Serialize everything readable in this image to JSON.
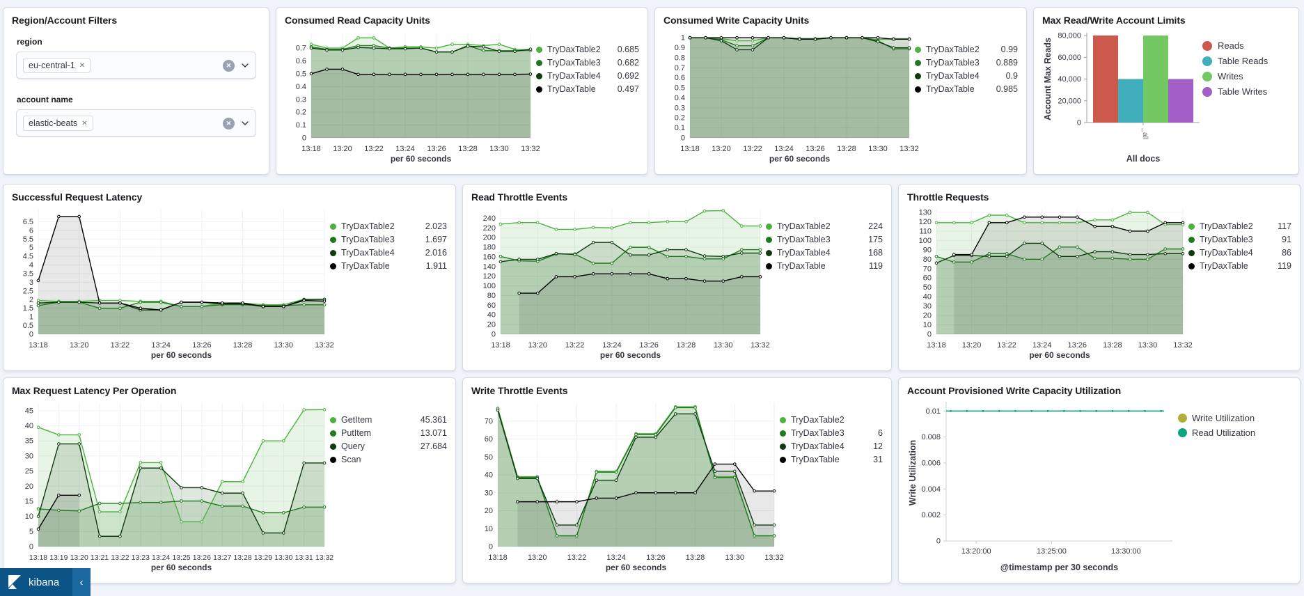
{
  "filters": {
    "title": "Region/Account Filters",
    "groups": [
      {
        "label": "region",
        "tag": "eu-central-1",
        "remove_icon": "✕"
      },
      {
        "label": "account name",
        "tag": "elastic-beats",
        "remove_icon": "✕"
      }
    ]
  },
  "kibana_bar": {
    "label": "kibana",
    "collapse_icon": "‹"
  },
  "palette": {
    "green_light": "#4CB13E",
    "green_mid": "#1F7A1F",
    "green_dark": "#0E3B0E",
    "black": "#000000",
    "bar_red": "#CB5A4C",
    "bar_teal": "#40AEBB",
    "bar_green": "#74C863",
    "bar_purple": "#A45FC6",
    "util_olive": "#B2AE3B",
    "util_teal": "#0EA47E"
  },
  "chart_data": [
    {
      "id": "consumed-read",
      "type": "line",
      "title": "Consumed Read Capacity Units",
      "xlabel": "per 60 seconds",
      "ylim": [
        0,
        0.82
      ],
      "yticks": [
        0,
        0.1,
        0.2,
        0.3,
        0.4,
        0.5,
        0.6,
        0.7
      ],
      "x_tick_every": 2,
      "categories": [
        "13:18",
        "13:19",
        "13:20",
        "13:21",
        "13:22",
        "13:23",
        "13:24",
        "13:25",
        "13:26",
        "13:27",
        "13:28",
        "13:29",
        "13:30",
        "13:31",
        "13:32"
      ],
      "series": [
        {
          "name": "TryDaxTable2",
          "legend_value": "0.685",
          "color": "#4CB13E",
          "values": [
            0.73,
            0.7,
            0.7,
            0.78,
            0.78,
            0.7,
            0.71,
            0.71,
            0.7,
            0.73,
            0.73,
            0.72,
            0.73,
            0.69,
            0.685
          ]
        },
        {
          "name": "TryDaxTable3",
          "legend_value": "0.682",
          "color": "#1F7A1F",
          "values": [
            0.71,
            0.69,
            0.69,
            0.72,
            0.72,
            0.7,
            0.7,
            0.7,
            0.67,
            0.67,
            0.72,
            0.68,
            0.68,
            0.68,
            0.682
          ]
        },
        {
          "name": "TryDaxTable4",
          "legend_value": "0.692",
          "color": "#0E3B0E",
          "values": [
            0.7,
            0.685,
            0.685,
            0.705,
            0.7,
            0.695,
            0.695,
            0.7,
            0.67,
            0.67,
            0.715,
            0.71,
            0.675,
            0.675,
            0.692
          ]
        },
        {
          "name": "TryDaxTable",
          "legend_value": "0.497",
          "color": "#000000",
          "values": [
            0.5,
            0.535,
            0.535,
            0.495,
            0.495,
            0.495,
            0.495,
            0.495,
            0.495,
            0.495,
            0.495,
            0.495,
            0.495,
            0.495,
            0.497
          ]
        }
      ]
    },
    {
      "id": "consumed-write",
      "type": "line",
      "title": "Consumed Write Capacity Units",
      "xlabel": "per 60 seconds",
      "ylim": [
        0,
        1.05
      ],
      "yticks": [
        0,
        0.1,
        0.2,
        0.3,
        0.4,
        0.5,
        0.6,
        0.7,
        0.8,
        0.9,
        1
      ],
      "x_tick_every": 2,
      "categories": [
        "13:18",
        "13:19",
        "13:20",
        "13:21",
        "13:22",
        "13:23",
        "13:24",
        "13:25",
        "13:26",
        "13:27",
        "13:28",
        "13:29",
        "13:30",
        "13:31",
        "13:32"
      ],
      "series": [
        {
          "name": "TryDaxTable2",
          "legend_value": "0.99",
          "color": "#4CB13E",
          "values": [
            1,
            1,
            0.99,
            0.97,
            0.97,
            1,
            1,
            0.99,
            0.99,
            1,
            1,
            1,
            0.98,
            0.99,
            0.99
          ]
        },
        {
          "name": "TryDaxTable3",
          "legend_value": "0.889",
          "color": "#1F7A1F",
          "values": [
            1,
            1,
            0.98,
            0.92,
            0.92,
            1,
            1,
            0.99,
            0.99,
            1,
            1,
            1,
            0.97,
            0.889,
            0.889
          ]
        },
        {
          "name": "TryDaxTable4",
          "legend_value": "0.9",
          "color": "#0E3B0E",
          "values": [
            1,
            1,
            0.97,
            0.88,
            0.88,
            1,
            1,
            0.985,
            0.985,
            1,
            1,
            1,
            0.96,
            0.9,
            0.9
          ]
        },
        {
          "name": "TryDaxTable",
          "legend_value": "0.985",
          "color": "#000000",
          "values": [
            1,
            1,
            1,
            1,
            1,
            1,
            1,
            0.985,
            0.985,
            1,
            1,
            1,
            1,
            0.985,
            0.985
          ]
        }
      ]
    },
    {
      "id": "account-limits",
      "type": "bar",
      "title": "Max Read/Write Account Limits",
      "xlabel": "All docs",
      "ylabel": "Account Max Reads",
      "x_tick_label": "_all",
      "ylim": [
        0,
        80000
      ],
      "yticks": [
        0,
        20000,
        40000,
        60000,
        80000
      ],
      "categories": [
        "_all"
      ],
      "series": [
        {
          "name": "Reads",
          "legend_value": "",
          "color": "#CB5A4C",
          "values": [
            80000
          ]
        },
        {
          "name": "Table Reads",
          "legend_value": "",
          "color": "#40AEBB",
          "values": [
            40000
          ]
        },
        {
          "name": "Writes",
          "legend_value": "",
          "color": "#74C863",
          "values": [
            80000
          ]
        },
        {
          "name": "Table Writes",
          "legend_value": "",
          "color": "#A45FC6",
          "values": [
            40000
          ]
        }
      ]
    },
    {
      "id": "request-latency",
      "type": "line",
      "title": "Successful Request Latency",
      "xlabel": "per 60 seconds",
      "ylim": [
        0,
        7.2
      ],
      "yticks": [
        0,
        0.5,
        1,
        1.5,
        2,
        2.5,
        3,
        3.5,
        4,
        4.5,
        5,
        5.5,
        6,
        6.5
      ],
      "x_tick_every": 2,
      "categories": [
        "13:18",
        "13:19",
        "13:20",
        "13:21",
        "13:22",
        "13:23",
        "13:24",
        "13:25",
        "13:26",
        "13:27",
        "13:28",
        "13:29",
        "13:30",
        "13:31",
        "13:32"
      ],
      "series": [
        {
          "name": "TryDaxTable2",
          "legend_value": "2.023",
          "color": "#4CB13E",
          "values": [
            1.95,
            1.9,
            1.9,
            1.95,
            1.95,
            1.9,
            1.9,
            1.6,
            1.6,
            1.8,
            1.8,
            1.7,
            1.7,
            2.02,
            2.023
          ]
        },
        {
          "name": "TryDaxTable3",
          "legend_value": "1.697",
          "color": "#1F7A1F",
          "values": [
            1.65,
            1.85,
            1.85,
            1.5,
            1.5,
            1.85,
            1.85,
            1.6,
            1.6,
            1.7,
            1.7,
            1.65,
            1.65,
            1.7,
            1.697
          ]
        },
        {
          "name": "TryDaxTable4",
          "legend_value": "2.016",
          "color": "#0E3B0E",
          "values": [
            1.8,
            1.85,
            1.85,
            1.8,
            1.8,
            1.4,
            1.4,
            1.85,
            1.85,
            1.75,
            1.75,
            1.6,
            1.6,
            2.0,
            2.016
          ]
        },
        {
          "name": "TryDaxTable",
          "legend_value": "1.911",
          "color": "#000000",
          "values": [
            3.1,
            6.8,
            6.8,
            1.8,
            1.8,
            1.5,
            1.4,
            1.85,
            1.85,
            1.8,
            1.8,
            1.6,
            1.6,
            1.95,
            1.911
          ]
        }
      ]
    },
    {
      "id": "read-throttle",
      "type": "line",
      "title": "Read Throttle Events",
      "xlabel": "per 60 seconds",
      "ylim": [
        0,
        258
      ],
      "yticks": [
        0,
        20,
        40,
        60,
        80,
        100,
        120,
        140,
        160,
        180,
        200,
        220,
        240
      ],
      "x_tick_every": 2,
      "categories": [
        "13:18",
        "13:19",
        "13:20",
        "13:21",
        "13:22",
        "13:23",
        "13:24",
        "13:25",
        "13:26",
        "13:27",
        "13:28",
        "13:29",
        "13:30",
        "13:31",
        "13:32"
      ],
      "series": [
        {
          "name": "TryDaxTable2",
          "legend_value": "224",
          "color": "#4CB13E",
          "values": [
            228,
            231,
            231,
            217,
            217,
            221,
            220,
            231,
            231,
            233,
            233,
            255,
            256,
            224,
            224
          ]
        },
        {
          "name": "TryDaxTable3",
          "legend_value": "175",
          "color": "#1F7A1F",
          "values": [
            161,
            152,
            151,
            166,
            166,
            147,
            147,
            180,
            180,
            161,
            161,
            156,
            156,
            175,
            175
          ]
        },
        {
          "name": "TryDaxTable4",
          "legend_value": "168",
          "color": "#0E3B0E",
          "values": [
            150,
            155,
            155,
            167,
            165,
            190,
            190,
            164,
            164,
            175,
            175,
            162,
            161,
            168,
            168
          ]
        },
        {
          "name": "TryDaxTable",
          "legend_value": "119",
          "color": "#000000",
          "values": [
            null,
            85,
            85,
            119,
            119,
            125,
            125,
            125,
            125,
            115,
            115,
            110,
            110,
            119,
            119
          ]
        }
      ]
    },
    {
      "id": "throttle-requests",
      "type": "line",
      "title": "Throttle Requests",
      "xlabel": "per 60 seconds",
      "ylim": [
        0,
        133
      ],
      "yticks": [
        0,
        10,
        20,
        30,
        40,
        50,
        60,
        70,
        80,
        90,
        100,
        110,
        120,
        130
      ],
      "x_tick_every": 2,
      "categories": [
        "13:18",
        "13:19",
        "13:20",
        "13:21",
        "13:22",
        "13:23",
        "13:24",
        "13:25",
        "13:26",
        "13:27",
        "13:28",
        "13:29",
        "13:30",
        "13:31",
        "13:32"
      ],
      "series": [
        {
          "name": "TryDaxTable2",
          "legend_value": "117",
          "color": "#4CB13E",
          "values": [
            119,
            119,
            119,
            127,
            127,
            119,
            119,
            119,
            119,
            122,
            122,
            130,
            130,
            117,
            117
          ]
        },
        {
          "name": "TryDaxTable3",
          "legend_value": "91",
          "color": "#1F7A1F",
          "values": [
            83,
            77,
            77,
            86,
            86,
            80,
            80,
            93,
            93,
            81,
            81,
            80,
            80,
            91,
            91
          ]
        },
        {
          "name": "TryDaxTable4",
          "legend_value": "86",
          "color": "#0E3B0E",
          "values": [
            76,
            84,
            84,
            83,
            83,
            97,
            97,
            83,
            83,
            88,
            88,
            85,
            85,
            86,
            86
          ]
        },
        {
          "name": "TryDaxTable",
          "legend_value": "119",
          "color": "#000000",
          "values": [
            null,
            85,
            85,
            119,
            119,
            125,
            125,
            125,
            125,
            115,
            115,
            110,
            110,
            119,
            119
          ]
        }
      ]
    },
    {
      "id": "max-latency-op",
      "type": "line",
      "title": "Max Request Latency Per Operation",
      "xlabel": "per 60 seconds",
      "ylim": [
        0,
        47.5
      ],
      "yticks": [
        0,
        5,
        10,
        15,
        20,
        25,
        30,
        35,
        40,
        45
      ],
      "x_tick_every": 1,
      "categories": [
        "13:18",
        "13:19",
        "13:20",
        "13:21",
        "13:22",
        "13:23",
        "13:24",
        "13:25",
        "13:26",
        "13:27",
        "13:28",
        "13:29",
        "13:30",
        "13:31",
        "13:32"
      ],
      "series": [
        {
          "name": "GetItem",
          "legend_value": "45.361",
          "color": "#4CB13E",
          "values": [
            39.5,
            37,
            37,
            11.5,
            11.5,
            27.8,
            27.8,
            8.2,
            8.2,
            21.5,
            21.5,
            35,
            35,
            45.3,
            45.361
          ]
        },
        {
          "name": "PutItem",
          "legend_value": "13.071",
          "color": "#1F7A1F",
          "values": [
            12.5,
            12,
            11.8,
            14.3,
            14.3,
            14.6,
            14.6,
            15.1,
            15.1,
            13.4,
            13.4,
            11.2,
            11.2,
            13.07,
            13.071
          ]
        },
        {
          "name": "Query",
          "legend_value": "27.684",
          "color": "#0E3B0E",
          "values": [
            10,
            34,
            34,
            3.4,
            3.4,
            26,
            26,
            19.5,
            19.5,
            17.7,
            17.7,
            4.5,
            4.5,
            27.68,
            27.684
          ]
        },
        {
          "name": "Scan",
          "legend_value": "",
          "color": "#000000",
          "values": [
            5.8,
            17,
            17,
            null,
            null,
            null,
            null,
            null,
            null,
            null,
            null,
            null,
            null,
            null,
            null
          ]
        }
      ]
    },
    {
      "id": "write-throttle",
      "type": "line",
      "title": "Write Throttle Events",
      "xlabel": "per 60 seconds",
      "ylim": [
        0,
        80
      ],
      "yticks": [
        0,
        10,
        20,
        30,
        40,
        50,
        60,
        70
      ],
      "x_tick_every": 2,
      "categories": [
        "13:18",
        "13:19",
        "13:20",
        "13:21",
        "13:22",
        "13:23",
        "13:24",
        "13:25",
        "13:26",
        "13:27",
        "13:28",
        "13:29",
        "13:30",
        "13:31",
        "13:32"
      ],
      "series": [
        {
          "name": "TryDaxTable2",
          "legend_value": "",
          "color": "#4CB13E",
          "values": [
            77,
            39,
            39,
            6,
            6,
            42,
            42,
            63,
            63,
            78,
            78,
            39,
            39,
            6,
            6
          ]
        },
        {
          "name": "TryDaxTable3",
          "legend_value": "6",
          "color": "#1F7A1F",
          "values": [
            77,
            38.5,
            38.5,
            6,
            6,
            41.5,
            41.5,
            62.5,
            62.5,
            77.5,
            77.5,
            38.5,
            38.5,
            6,
            6
          ]
        },
        {
          "name": "TryDaxTable4",
          "legend_value": "12",
          "color": "#0E3B0E",
          "values": [
            76,
            38,
            38,
            12,
            12,
            37,
            37,
            61,
            61,
            74,
            74,
            42,
            42,
            12,
            12
          ]
        },
        {
          "name": "TryDaxTable",
          "legend_value": "31",
          "color": "#000000",
          "values": [
            null,
            25,
            25,
            25,
            25,
            27,
            27,
            30,
            30,
            30,
            30,
            46,
            46,
            31,
            31
          ]
        }
      ]
    },
    {
      "id": "write-utilization",
      "type": "line",
      "title": "Account Provisioned Write Capacity Utilization",
      "xlabel": "@timestamp per 30 seconds",
      "ylabel": "Write Utilization",
      "ylim": [
        0,
        0.0105
      ],
      "yticks": [
        0,
        0.002,
        0.004,
        0.006,
        0.008,
        0.01
      ],
      "x_ticks": [
        {
          "label": "13:20:00",
          "pos": 0.133
        },
        {
          "label": "13:25:00",
          "pos": 0.466
        },
        {
          "label": "13:30:00",
          "pos": 0.795
        }
      ],
      "line_value": 0.01,
      "line_span": [
        0,
        0.963
      ],
      "line_color": "#0EA47E",
      "series": [
        {
          "name": "Write Utilization",
          "legend_value": "",
          "color": "#B2AE3B",
          "values": [
            0.01
          ]
        },
        {
          "name": "Read Utilization",
          "legend_value": "",
          "color": "#0EA47E",
          "values": [
            0.01
          ]
        }
      ]
    }
  ]
}
